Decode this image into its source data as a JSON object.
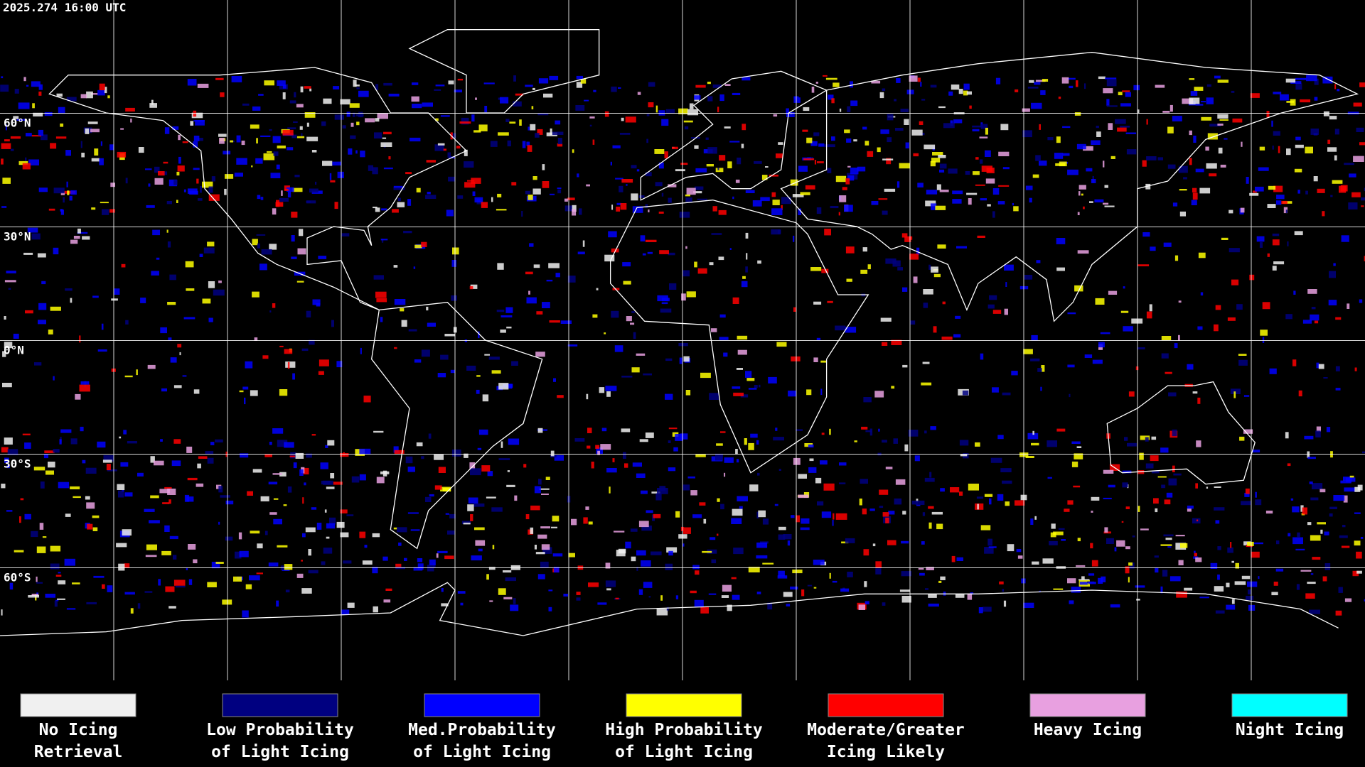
{
  "header": {
    "timestamp": "2025.274 16:00 UTC"
  },
  "map": {
    "latitude_labels": [
      "60°N",
      "30°N",
      "0°N",
      "30°S",
      "60°S"
    ]
  },
  "legend": {
    "items": [
      {
        "label_lines": [
          "No Icing",
          "Retrieval"
        ],
        "color": "#f0f0f0"
      },
      {
        "label_lines": [
          "Low Probability",
          "of Light Icing"
        ],
        "color": "#000080"
      },
      {
        "label_lines": [
          "Med.Probability",
          "of Light Icing"
        ],
        "color": "#0000ff"
      },
      {
        "label_lines": [
          "High Probability",
          "of Light Icing"
        ],
        "color": "#ffff00"
      },
      {
        "label_lines": [
          "Moderate/Greater",
          "Icing Likely"
        ],
        "color": "#ff0000"
      },
      {
        "label_lines": [
          "Heavy Icing"
        ],
        "color": "#e8a0e0"
      },
      {
        "label_lines": [
          "Night Icing"
        ],
        "color": "#00ffff"
      }
    ]
  }
}
